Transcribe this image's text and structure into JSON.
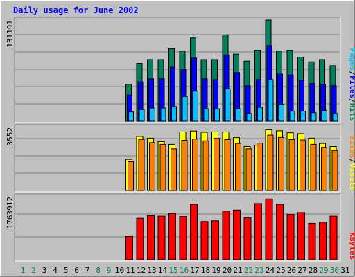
{
  "title": "Daily usage for June 2002",
  "colors": {
    "background": "#c0c0c0",
    "title": "#0000ff",
    "hits": "#00805c",
    "files": "#0000ff",
    "pages": "#00c0ff",
    "visits": "#ffff00",
    "sites": "#ff8000",
    "kbytes": "#ff0000",
    "weekend_day": "#00805c",
    "weekday": "#000000"
  },
  "chart_data": {
    "type": "bar",
    "categories": [
      "1",
      "2",
      "3",
      "4",
      "5",
      "6",
      "7",
      "8",
      "9",
      "10",
      "11",
      "12",
      "13",
      "14",
      "15",
      "16",
      "17",
      "18",
      "19",
      "20",
      "21",
      "22",
      "23",
      "24",
      "25",
      "26",
      "27",
      "28",
      "29",
      "30",
      "31"
    ],
    "weekend_days": [
      "1",
      "2",
      "8",
      "9",
      "15",
      "16",
      "22",
      "23",
      "29",
      "30"
    ],
    "panels": [
      {
        "ylabel_parts": [
          "Pages",
          "/",
          "Files",
          "/",
          "Hits"
        ],
        "max_label": "131191",
        "ylim": [
          0,
          131191
        ],
        "series": [
          {
            "name": "Hits",
            "values": [
              0,
              0,
              0,
              0,
              0,
              0,
              0,
              0,
              0,
              0,
              48000,
              75000,
              80000,
              80000,
              94000,
              91000,
              108000,
              80000,
              80000,
              112000,
              87000,
              78000,
              92000,
              131191,
              91000,
              92000,
              83000,
              77000,
              80000,
              72000,
              0
            ]
          },
          {
            "name": "Files",
            "values": [
              0,
              0,
              0,
              0,
              0,
              0,
              0,
              0,
              0,
              0,
              34000,
              51000,
              55000,
              55000,
              70000,
              67000,
              82000,
              55000,
              54000,
              86000,
              63000,
              46000,
              54000,
              98000,
              61000,
              60000,
              53000,
              49000,
              48000,
              46000,
              0
            ]
          },
          {
            "name": "Pages",
            "values": [
              0,
              0,
              0,
              0,
              0,
              0,
              0,
              0,
              0,
              0,
              12000,
              15000,
              17000,
              17000,
              19000,
              32000,
              39000,
              16000,
              16000,
              42000,
              16000,
              10000,
              18000,
              54000,
              22000,
              13000,
              13000,
              11000,
              14000,
              10000,
              0
            ]
          }
        ]
      },
      {
        "ylabel_parts": [
          "Sites",
          "/",
          "Visits"
        ],
        "max_label": "3552",
        "ylim": [
          0,
          3552
        ],
        "series": [
          {
            "name": "Visits",
            "values": [
              0,
              0,
              0,
              0,
              0,
              0,
              0,
              0,
              0,
              0,
              1750,
              3050,
              2950,
              2750,
              2600,
              3300,
              3350,
              3280,
              3300,
              3300,
              2980,
              2480,
              2550,
              3420,
              3360,
              3250,
              3200,
              2950,
              2650,
              2480,
              0
            ]
          },
          {
            "name": "Sites",
            "values": [
              0,
              0,
              0,
              0,
              0,
              0,
              0,
              0,
              0,
              0,
              1620,
              2880,
              2700,
              2600,
              2350,
              2830,
              2900,
              2800,
              2940,
              2870,
              2650,
              2350,
              2670,
              3120,
              2990,
              2870,
              2850,
              2600,
              2430,
              2250,
              0
            ]
          }
        ]
      },
      {
        "ylabel_parts": [
          "KBytes"
        ],
        "max_label": "1763912",
        "ylim": [
          0,
          1763912
        ],
        "series": [
          {
            "name": "KBytes",
            "values": [
              0,
              0,
              0,
              0,
              0,
              0,
              0,
              0,
              0,
              0,
              650000,
              1160000,
              1230000,
              1220000,
              1290000,
              1210000,
              1550000,
              1070000,
              1090000,
              1360000,
              1390000,
              1170000,
              1570000,
              1700000,
              1550000,
              1270000,
              1320000,
              1020000,
              1050000,
              1220000,
              0
            ]
          }
        ]
      }
    ]
  }
}
